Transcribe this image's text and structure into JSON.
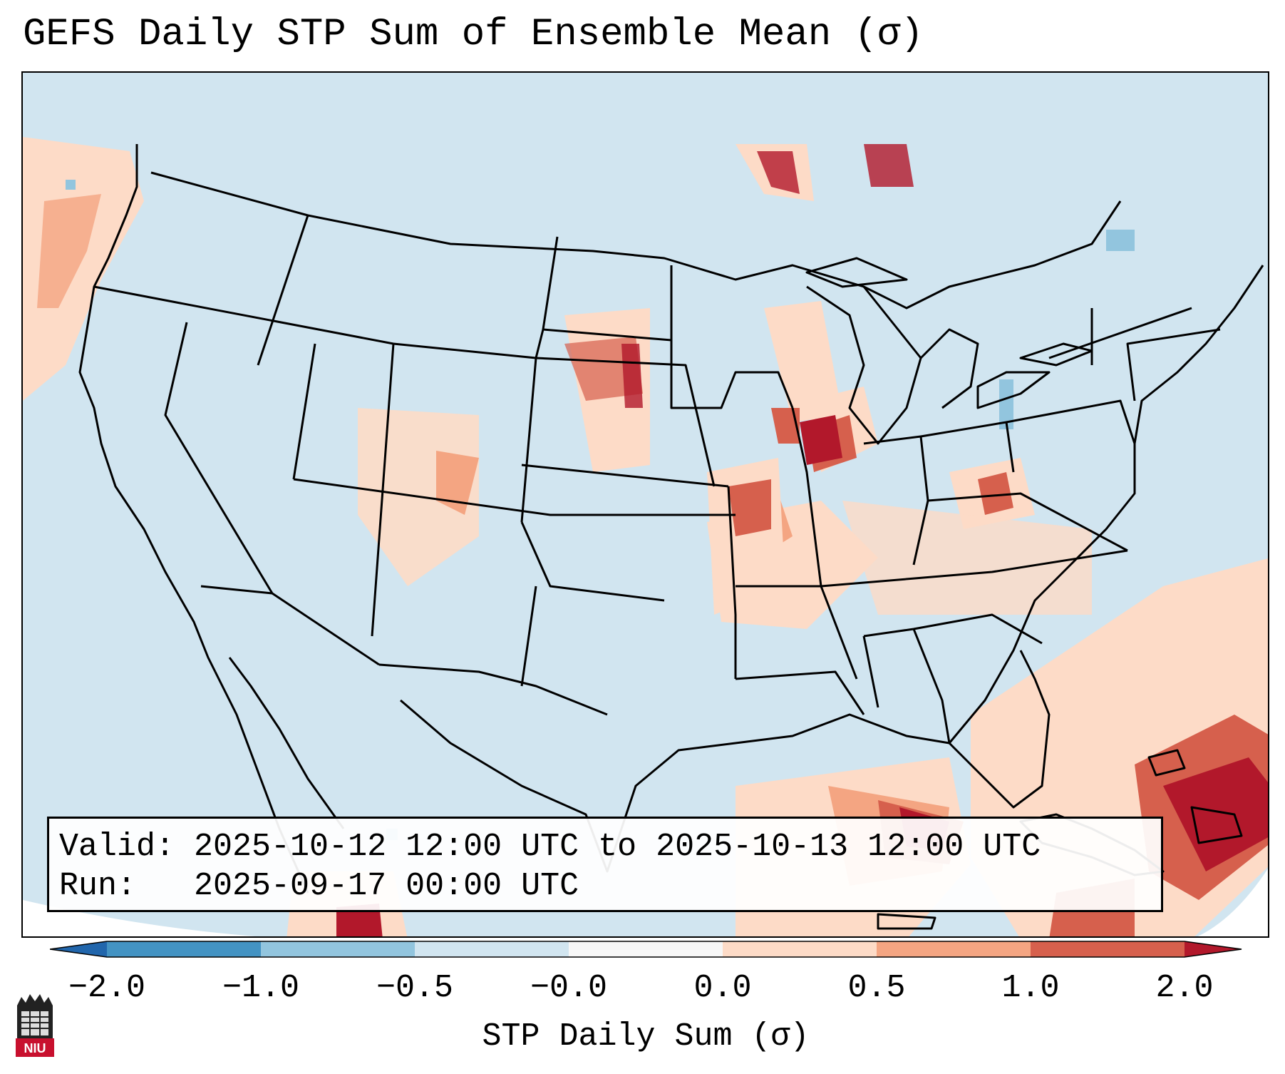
{
  "header": {
    "title": "GEFS Daily STP Sum of Ensemble Mean (σ)"
  },
  "map": {
    "description_icon": "map-icon",
    "colors": {
      "ocean": "#d0e3ef",
      "neutral": "#f7f7f7",
      "light_pos": "#fcdbc7",
      "mid_pos": "#f4a582",
      "pos": "#d6604d",
      "strong_pos": "#b2182b",
      "light_neg": "#92c5de",
      "neg": "#4393c3",
      "strong_neg": "#2166ac",
      "border": "#000000"
    }
  },
  "info": {
    "valid": "Valid: 2025-10-12 12:00 UTC to 2025-10-13 12:00 UTC",
    "run": "Run:   2025-09-17 00:00 UTC"
  },
  "colorbar": {
    "title": "STP Daily Sum (σ)",
    "tick_labels": [
      "−2.0",
      "−1.0",
      "−0.5",
      "−0.0",
      "0.0",
      "0.5",
      "1.0",
      "2.0"
    ],
    "segment_colors": [
      "#2166ac",
      "#4393c3",
      "#92c5de",
      "#d1e5f0",
      "#f7f7f7",
      "#fddbc7",
      "#f4a582",
      "#d6604d",
      "#b2182b"
    ]
  },
  "logo": {
    "text": "NIU",
    "icon": "niu-logo-icon"
  }
}
